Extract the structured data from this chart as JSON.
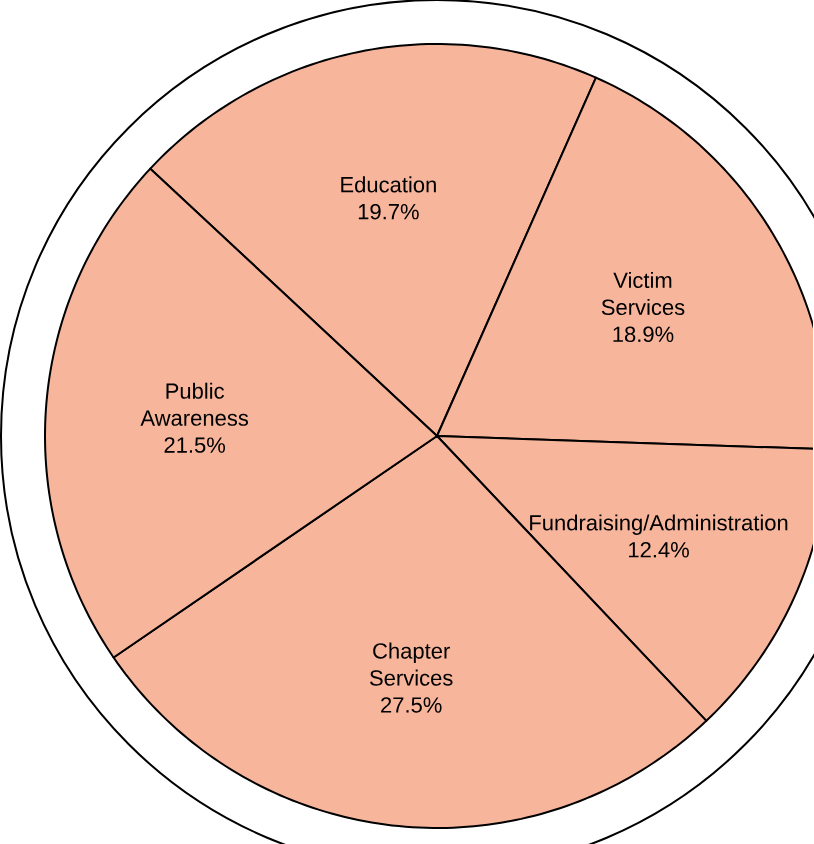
{
  "chart_data": {
    "type": "pie",
    "categories": [
      "Education",
      "Victim Services",
      "Fundraising/Administration",
      "Chapter Services",
      "Public Awareness"
    ],
    "values": [
      19.7,
      18.9,
      12.4,
      27.5,
      21.5
    ],
    "value_labels": [
      "19.7%",
      "18.9%",
      "12.4%",
      "27.5%",
      "21.5%"
    ],
    "colors": [
      "#f7b59c",
      "#f7b59c",
      "#f7b59c",
      "#f7b59c",
      "#f7b59c"
    ]
  }
}
